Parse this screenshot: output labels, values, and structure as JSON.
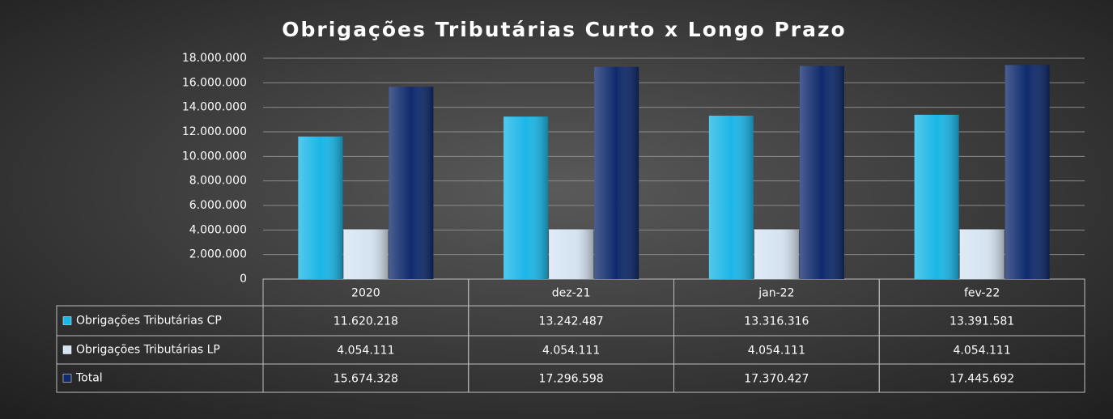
{
  "chart_data": {
    "type": "bar",
    "title": "Obrigações Tributárias Curto x Longo Prazo",
    "categories": [
      "2020",
      "dez-21",
      "jan-22",
      "fev-22"
    ],
    "series": [
      {
        "name": "Obrigações Tributárias CP",
        "color": "#1bb6e6",
        "values": [
          11620218,
          13242487,
          13316316,
          13391581
        ],
        "value_labels": [
          "11.620.218",
          "13.242.487",
          "13.316.316",
          "13.391.581"
        ]
      },
      {
        "name": "Obrigações Tributárias LP",
        "color": "#d6e4f2",
        "values": [
          4054111,
          4054111,
          4054111,
          4054111
        ],
        "value_labels": [
          "4.054.111",
          "4.054.111",
          "4.054.111",
          "4.054.111"
        ]
      },
      {
        "name": "Total",
        "color": "#0f2a6c",
        "values": [
          15674328,
          17296598,
          17370427,
          17445692
        ],
        "value_labels": [
          "15.674.328",
          "17.296.598",
          "17.370.427",
          "17.445.692"
        ]
      }
    ],
    "ylim": [
      0,
      18000000
    ],
    "yticks": [
      0,
      {
        "value": 2000000,
        "label": "2.000.000"
      },
      {
        "value": 4000000,
        "label": "4.000.000"
      },
      {
        "value": 6000000,
        "label": "6.000.000"
      },
      {
        "value": 8000000,
        "label": "8.000.000"
      },
      {
        "value": 10000000,
        "label": "10.000.000"
      },
      {
        "value": 12000000,
        "label": "12.000.000"
      },
      {
        "value": 14000000,
        "label": "14.000.000"
      },
      {
        "value": 16000000,
        "label": "16.000.000"
      },
      {
        "value": 18000000,
        "label": "18.000.000"
      }
    ],
    "grid": true
  }
}
